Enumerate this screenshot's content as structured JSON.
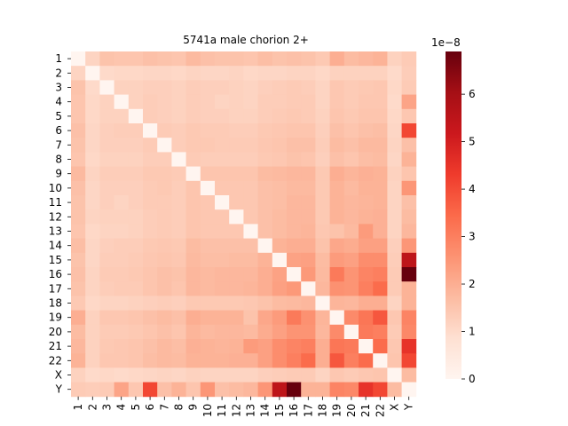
{
  "chart_data": {
    "type": "heatmap",
    "title": "5741a male chorion 2+",
    "categories": [
      "1",
      "2",
      "3",
      "4",
      "5",
      "6",
      "7",
      "8",
      "9",
      "10",
      "11",
      "12",
      "13",
      "14",
      "15",
      "16",
      "17",
      "18",
      "19",
      "20",
      "21",
      "22",
      "X",
      "Y"
    ],
    "colormap": "Reds",
    "colorbar": {
      "min": 0,
      "max": 6.9,
      "ticks": [
        0,
        1,
        2,
        3,
        4,
        5,
        6
      ],
      "tick_labels": [
        "0",
        "1",
        "2",
        "3",
        "4",
        "5",
        "6"
      ],
      "scale_label": "1e−8"
    },
    "values": [
      [
        0.0,
        1.15,
        1.55,
        1.5,
        1.5,
        1.6,
        1.55,
        1.5,
        1.75,
        1.6,
        1.55,
        1.55,
        1.5,
        1.65,
        1.55,
        1.6,
        1.55,
        1.4,
        2.0,
        1.7,
        1.8,
        1.9,
        1.2,
        1.35
      ],
      [
        1.15,
        0.0,
        1.0,
        1.05,
        1.05,
        1.1,
        1.1,
        1.05,
        1.15,
        1.1,
        1.1,
        1.15,
        1.05,
        1.1,
        1.1,
        1.15,
        1.15,
        1.05,
        1.2,
        1.2,
        1.2,
        1.2,
        1.0,
        1.3
      ],
      [
        1.55,
        1.0,
        0.0,
        1.2,
        1.2,
        1.25,
        1.25,
        1.2,
        1.3,
        1.25,
        1.25,
        1.2,
        1.15,
        1.25,
        1.3,
        1.35,
        1.3,
        1.15,
        1.45,
        1.35,
        1.4,
        1.45,
        1.05,
        1.35
      ],
      [
        1.5,
        1.05,
        1.2,
        0.0,
        1.2,
        1.3,
        1.25,
        1.2,
        1.3,
        1.25,
        1.15,
        1.2,
        1.15,
        1.3,
        1.3,
        1.35,
        1.35,
        1.15,
        1.45,
        1.35,
        1.45,
        1.45,
        1.0,
        2.2
      ],
      [
        1.5,
        1.05,
        1.2,
        1.2,
        0.0,
        1.3,
        1.25,
        1.2,
        1.3,
        1.25,
        1.25,
        1.2,
        1.2,
        1.3,
        1.35,
        1.4,
        1.35,
        1.2,
        1.5,
        1.4,
        1.5,
        1.5,
        1.05,
        1.45
      ],
      [
        1.6,
        1.1,
        1.25,
        1.3,
        1.3,
        0.0,
        1.35,
        1.3,
        1.4,
        1.35,
        1.35,
        1.3,
        1.3,
        1.4,
        1.45,
        1.5,
        1.5,
        1.25,
        1.6,
        1.5,
        1.6,
        1.65,
        1.1,
        4.1
      ],
      [
        1.55,
        1.1,
        1.25,
        1.25,
        1.25,
        1.35,
        0.0,
        1.3,
        1.4,
        1.4,
        1.35,
        1.35,
        1.35,
        1.45,
        1.5,
        1.6,
        1.6,
        1.3,
        1.7,
        1.6,
        1.75,
        1.75,
        1.15,
        1.6
      ],
      [
        1.5,
        1.05,
        1.2,
        1.2,
        1.2,
        1.3,
        1.3,
        0.0,
        1.35,
        1.3,
        1.3,
        1.3,
        1.3,
        1.4,
        1.45,
        1.55,
        1.5,
        1.25,
        1.6,
        1.5,
        1.65,
        1.7,
        1.1,
        1.9
      ],
      [
        1.75,
        1.15,
        1.3,
        1.3,
        1.3,
        1.4,
        1.4,
        1.35,
        0.0,
        1.5,
        1.5,
        1.5,
        1.5,
        1.7,
        1.75,
        1.8,
        1.8,
        1.4,
        2.0,
        1.85,
        1.95,
        1.9,
        1.2,
        1.5
      ],
      [
        1.6,
        1.1,
        1.25,
        1.25,
        1.25,
        1.35,
        1.4,
        1.3,
        1.5,
        0.0,
        1.45,
        1.45,
        1.45,
        1.6,
        1.65,
        1.75,
        1.75,
        1.4,
        1.9,
        1.75,
        1.9,
        1.9,
        1.15,
        2.5
      ],
      [
        1.55,
        1.1,
        1.25,
        1.15,
        1.25,
        1.35,
        1.35,
        1.3,
        1.5,
        1.45,
        0.0,
        1.45,
        1.45,
        1.6,
        1.65,
        1.8,
        1.8,
        1.4,
        1.9,
        1.8,
        1.85,
        1.9,
        1.15,
        1.6
      ],
      [
        1.55,
        1.15,
        1.2,
        1.2,
        1.2,
        1.3,
        1.35,
        1.3,
        1.5,
        1.45,
        1.45,
        0.0,
        1.45,
        1.6,
        1.7,
        1.8,
        1.8,
        1.4,
        1.9,
        1.8,
        1.9,
        1.95,
        1.15,
        1.7
      ],
      [
        1.5,
        1.05,
        1.15,
        1.15,
        1.2,
        1.3,
        1.35,
        1.3,
        1.5,
        1.45,
        1.45,
        1.45,
        0.0,
        1.6,
        1.7,
        1.8,
        1.85,
        1.45,
        1.55,
        1.75,
        2.4,
        1.95,
        1.15,
        1.8
      ],
      [
        1.65,
        1.1,
        1.25,
        1.3,
        1.3,
        1.4,
        1.45,
        1.4,
        1.7,
        1.6,
        1.6,
        1.6,
        1.6,
        0.0,
        1.9,
        2.0,
        2.0,
        1.55,
        2.15,
        2.05,
        2.3,
        2.3,
        1.25,
        2.5
      ],
      [
        1.55,
        1.1,
        1.3,
        1.3,
        1.35,
        1.45,
        1.5,
        1.45,
        1.75,
        1.65,
        1.65,
        1.7,
        1.7,
        1.9,
        0.0,
        2.25,
        2.3,
        1.7,
        2.4,
        2.3,
        2.7,
        2.7,
        1.3,
        5.5
      ],
      [
        1.6,
        1.15,
        1.35,
        1.35,
        1.4,
        1.5,
        1.6,
        1.55,
        1.8,
        1.75,
        1.8,
        1.8,
        1.8,
        2.0,
        2.25,
        0.0,
        2.45,
        1.75,
        3.1,
        2.55,
        2.9,
        3.0,
        1.35,
        6.9
      ],
      [
        1.55,
        1.15,
        1.3,
        1.35,
        1.35,
        1.5,
        1.6,
        1.5,
        1.8,
        1.75,
        1.8,
        1.8,
        1.85,
        2.0,
        2.3,
        2.45,
        0.0,
        1.8,
        2.6,
        2.55,
        3.0,
        3.4,
        1.35,
        1.9
      ],
      [
        1.4,
        1.05,
        1.15,
        1.15,
        1.2,
        1.25,
        1.3,
        1.25,
        1.4,
        1.4,
        1.4,
        1.4,
        1.45,
        1.55,
        1.7,
        1.75,
        1.8,
        0.0,
        1.85,
        1.8,
        2.0,
        2.0,
        1.15,
        1.9
      ],
      [
        2.0,
        1.2,
        1.45,
        1.45,
        1.5,
        1.6,
        1.7,
        1.6,
        2.0,
        1.9,
        1.9,
        1.9,
        1.55,
        2.15,
        2.4,
        3.1,
        2.6,
        1.85,
        0.0,
        2.75,
        3.2,
        3.8,
        1.45,
        2.9
      ],
      [
        1.7,
        1.2,
        1.35,
        1.35,
        1.4,
        1.5,
        1.6,
        1.5,
        1.85,
        1.75,
        1.8,
        1.8,
        1.75,
        2.05,
        2.3,
        2.55,
        2.55,
        1.8,
        2.75,
        0.0,
        3.1,
        3.0,
        1.35,
        2.8
      ],
      [
        1.8,
        1.2,
        1.4,
        1.45,
        1.5,
        1.6,
        1.75,
        1.65,
        1.95,
        1.9,
        1.85,
        1.9,
        2.4,
        2.3,
        2.7,
        2.9,
        3.0,
        2.0,
        3.2,
        3.1,
        0.0,
        3.4,
        1.45,
        4.5
      ],
      [
        1.9,
        1.2,
        1.45,
        1.45,
        1.5,
        1.65,
        1.75,
        1.7,
        1.9,
        1.9,
        1.9,
        1.95,
        1.95,
        2.3,
        2.7,
        3.0,
        3.4,
        2.0,
        3.8,
        3.0,
        3.4,
        0.0,
        1.5,
        4.1
      ],
      [
        1.2,
        1.0,
        1.05,
        1.0,
        1.05,
        1.1,
        1.15,
        1.1,
        1.2,
        1.15,
        1.15,
        1.15,
        1.15,
        1.25,
        1.3,
        1.35,
        1.35,
        1.15,
        1.45,
        1.35,
        1.45,
        1.5,
        0.0,
        1.7
      ],
      [
        1.35,
        1.3,
        1.35,
        2.2,
        1.45,
        4.1,
        1.6,
        1.9,
        1.5,
        2.5,
        1.6,
        1.7,
        1.8,
        2.5,
        5.5,
        6.9,
        1.9,
        1.9,
        2.9,
        2.8,
        4.5,
        4.1,
        1.7,
        0.0
      ]
    ]
  }
}
